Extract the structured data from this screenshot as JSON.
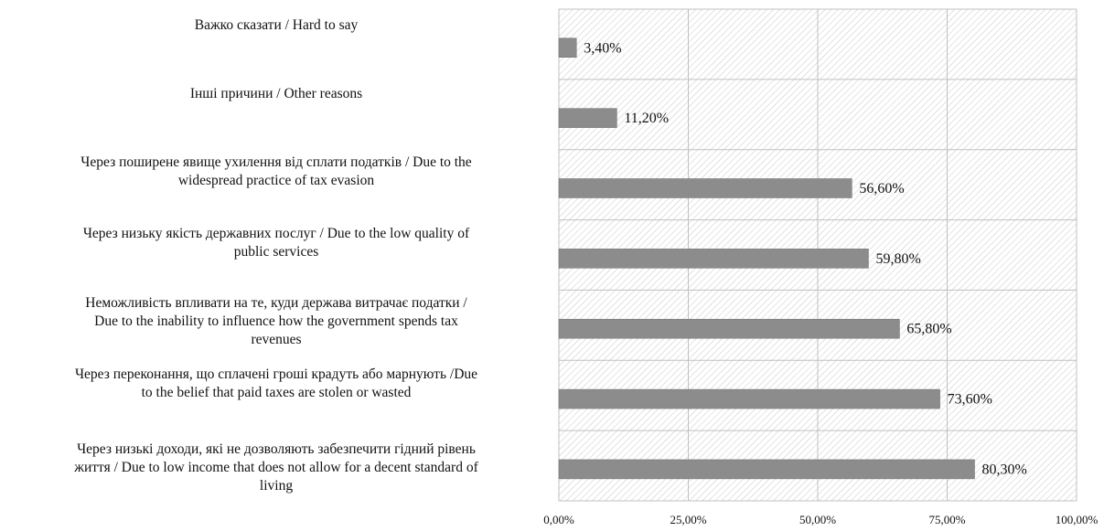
{
  "chart_data": {
    "type": "bar",
    "orientation": "horizontal",
    "categories": [
      "Важко сказати / Hard to say",
      "Інші причини / Other reasons",
      "Через поширене явище ухилення від сплати податків / Due to the widespread practice of tax evasion",
      "Через низьку якість державних послуг / Due to the low quality of public services",
      "Неможливість впливати на те, куди держава витрачає податки / Due to the inability to influence how the government spends tax revenues",
      "Через переконання, що сплачені гроші крадуть або марнують /Due to the belief that paid taxes are stolen or wasted",
      "Через низькі доходи, які не дозволяють забезпечити гідний рівень життя / Due to low income that does not allow for a decent standard of living"
    ],
    "values": [
      3.4,
      11.2,
      56.6,
      59.8,
      65.8,
      73.6,
      80.3
    ],
    "value_labels": [
      "3,40%",
      "11,20%",
      "56,60%",
      "59,80%",
      "65,80%",
      "73,60%",
      "80,30%"
    ],
    "xlim": [
      0,
      100
    ],
    "x_ticks": [
      "0,00%",
      "25,00%",
      "50,00%",
      "75,00%",
      "100,00%"
    ],
    "grid": true,
    "colors": {
      "bar": "#8c8c8c",
      "bar_edge": "#6f6f6f",
      "hatch": "#c8c8c8",
      "grid": "#c0c0c0"
    }
  }
}
